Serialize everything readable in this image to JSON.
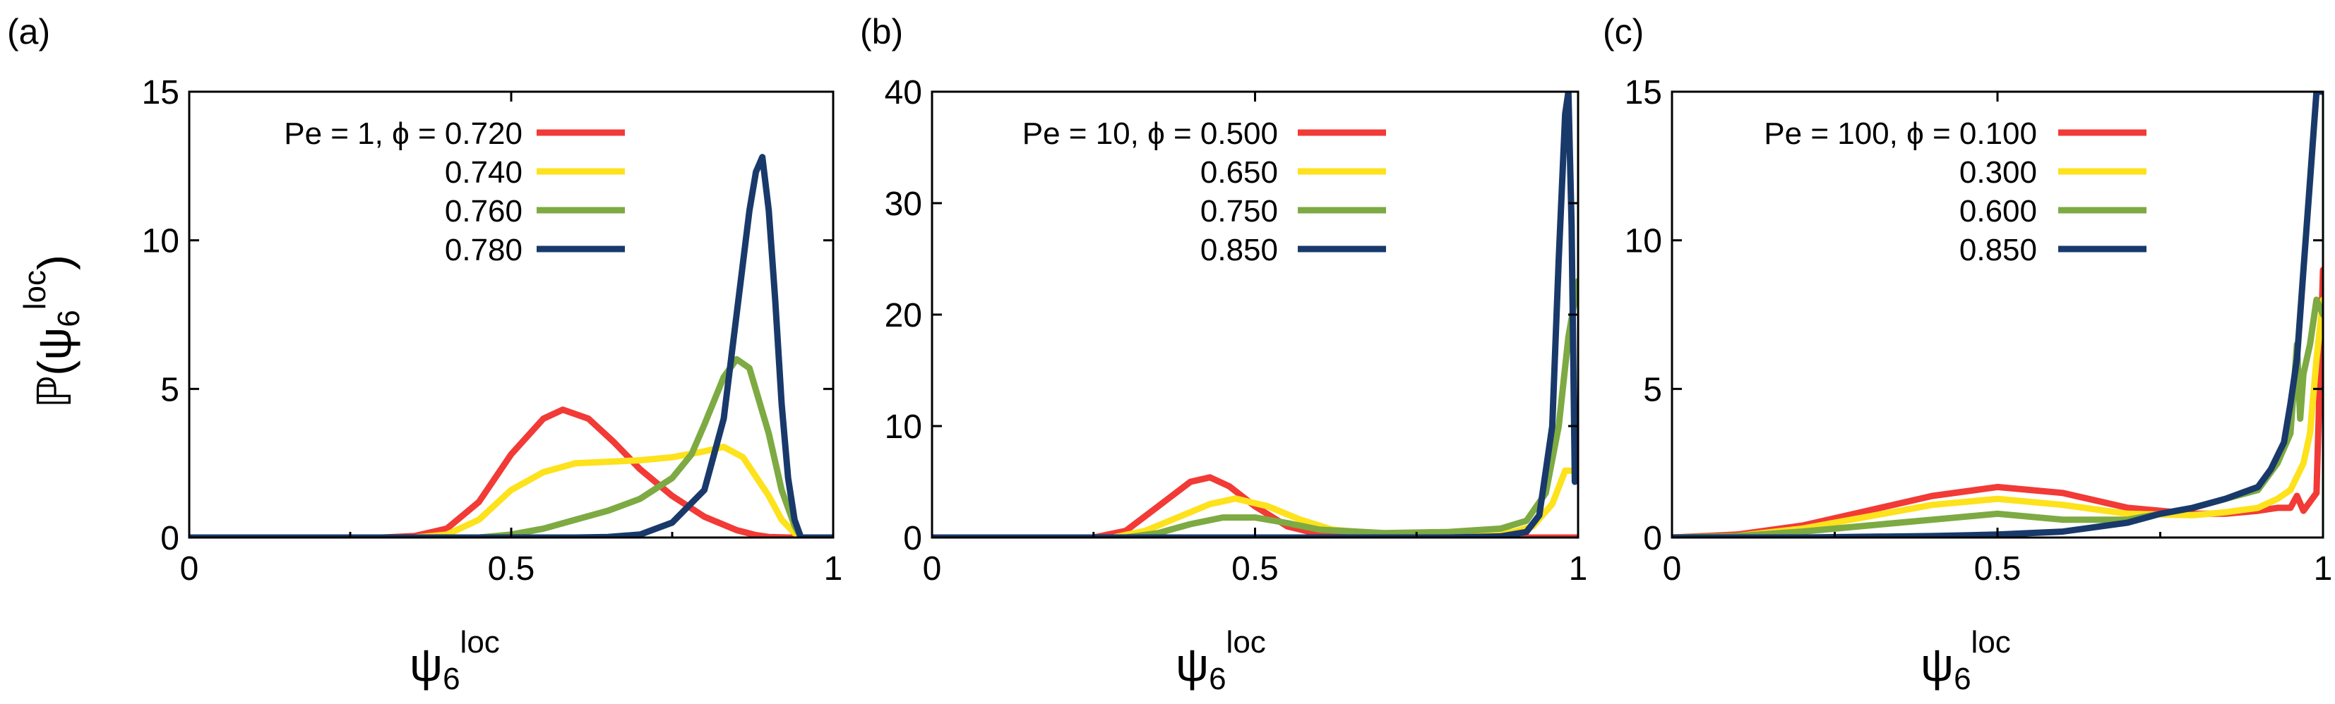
{
  "ylabel_main": "ℙ(ψ",
  "ylabel_sub": "6",
  "ylabel_sup": "loc",
  "ylabel_close": ")",
  "xlabel_main": "ψ",
  "xlabel_sub": "6",
  "xlabel_sup": "loc",
  "colors": {
    "red": "#f23a36",
    "yellow": "#fde21c",
    "green": "#7daa42",
    "navy": "#19396b"
  },
  "chart_data": [
    {
      "type": "line",
      "panel_label": "(a)",
      "legend_prefix": "Pe = 1, ϕ = ",
      "xlim": [
        0,
        1
      ],
      "ylim": [
        0,
        15
      ],
      "xticks": [
        0,
        0.5,
        1
      ],
      "xtick_labels": [
        "0",
        "0.5",
        "1"
      ],
      "yticks": [
        0,
        5,
        10,
        15
      ],
      "ytick_labels": [
        "0",
        "5",
        "10",
        "15"
      ],
      "series": [
        {
          "name": "0.720",
          "color": "#f23a36",
          "x": [
            0,
            0.3,
            0.35,
            0.4,
            0.45,
            0.5,
            0.55,
            0.58,
            0.62,
            0.66,
            0.7,
            0.75,
            0.8,
            0.85,
            0.88,
            0.9,
            0.93,
            1.0
          ],
          "y": [
            0,
            0,
            0.05,
            0.3,
            1.2,
            2.8,
            4.0,
            4.3,
            4.0,
            3.2,
            2.3,
            1.4,
            0.7,
            0.25,
            0.08,
            0.02,
            0,
            0
          ]
        },
        {
          "name": "0.740",
          "color": "#fde21c",
          "x": [
            0,
            0.35,
            0.4,
            0.45,
            0.5,
            0.55,
            0.6,
            0.65,
            0.7,
            0.75,
            0.8,
            0.83,
            0.86,
            0.9,
            0.92,
            0.94,
            0.95,
            1.0
          ],
          "y": [
            0,
            0,
            0.1,
            0.6,
            1.6,
            2.2,
            2.5,
            2.55,
            2.6,
            2.7,
            2.9,
            3.05,
            2.7,
            1.4,
            0.6,
            0.15,
            0,
            0
          ]
        },
        {
          "name": "0.760",
          "color": "#7daa42",
          "x": [
            0,
            0.45,
            0.5,
            0.55,
            0.6,
            0.65,
            0.7,
            0.75,
            0.78,
            0.8,
            0.83,
            0.85,
            0.87,
            0.9,
            0.92,
            0.94,
            0.95,
            1.0
          ],
          "y": [
            0,
            0,
            0.1,
            0.3,
            0.6,
            0.9,
            1.3,
            2.0,
            2.8,
            3.8,
            5.4,
            6.0,
            5.7,
            3.5,
            1.6,
            0.4,
            0,
            0
          ]
        },
        {
          "name": "0.780",
          "color": "#19396b",
          "x": [
            0,
            0.6,
            0.65,
            0.7,
            0.75,
            0.8,
            0.83,
            0.85,
            0.87,
            0.88,
            0.89,
            0.9,
            0.91,
            0.92,
            0.93,
            0.94,
            0.95,
            1.0
          ],
          "y": [
            0,
            0,
            0.02,
            0.1,
            0.5,
            1.6,
            4.0,
            7.5,
            11.0,
            12.3,
            12.8,
            11.0,
            8.0,
            4.5,
            2.0,
            0.6,
            0,
            0
          ]
        }
      ]
    },
    {
      "type": "line",
      "panel_label": "(b)",
      "legend_prefix": "Pe = 10, ϕ = ",
      "xlim": [
        0,
        1
      ],
      "ylim": [
        0,
        40
      ],
      "xticks": [
        0,
        0.5,
        1
      ],
      "xtick_labels": [
        "0",
        "0.5",
        "1"
      ],
      "yticks": [
        0,
        10,
        20,
        30,
        40
      ],
      "ytick_labels": [
        "0",
        "10",
        "20",
        "30",
        "40"
      ],
      "series": [
        {
          "name": "0.500",
          "color": "#f23a36",
          "x": [
            0,
            0.25,
            0.3,
            0.35,
            0.4,
            0.43,
            0.46,
            0.5,
            0.55,
            0.6,
            0.7,
            0.8,
            0.9,
            0.97,
            1.0
          ],
          "y": [
            0,
            0,
            0.6,
            2.8,
            5.0,
            5.4,
            4.6,
            2.8,
            1.0,
            0.3,
            0.05,
            0,
            0,
            0,
            0
          ]
        },
        {
          "name": "0.650",
          "color": "#fde21c",
          "x": [
            0,
            0.28,
            0.33,
            0.38,
            0.43,
            0.47,
            0.52,
            0.57,
            0.62,
            0.7,
            0.8,
            0.9,
            0.93,
            0.96,
            0.98,
            1.0
          ],
          "y": [
            0,
            0,
            0.6,
            1.8,
            3.0,
            3.5,
            2.8,
            1.6,
            0.7,
            0.3,
            0.3,
            0.5,
            1.0,
            3.0,
            6.0,
            6.0
          ]
        },
        {
          "name": "0.750",
          "color": "#7daa42",
          "x": [
            0,
            0.3,
            0.35,
            0.4,
            0.45,
            0.5,
            0.55,
            0.6,
            0.7,
            0.8,
            0.88,
            0.92,
            0.95,
            0.97,
            0.985,
            1.0
          ],
          "y": [
            0,
            0,
            0.4,
            1.2,
            1.8,
            1.8,
            1.3,
            0.7,
            0.4,
            0.5,
            0.8,
            1.5,
            4.0,
            10.0,
            18.0,
            23.0
          ]
        },
        {
          "name": "0.850",
          "color": "#19396b",
          "x": [
            0,
            0.8,
            0.88,
            0.92,
            0.94,
            0.96,
            0.97,
            0.98,
            0.985,
            0.99,
            0.995
          ],
          "y": [
            0,
            0,
            0.1,
            0.5,
            2.0,
            10.0,
            25.0,
            38.0,
            40.0,
            28.0,
            5.0
          ]
        }
      ]
    },
    {
      "type": "line",
      "panel_label": "(c)",
      "legend_prefix": "Pe = 100, ϕ = ",
      "xlim": [
        0,
        1
      ],
      "ylim": [
        0,
        15
      ],
      "xticks": [
        0,
        0.5,
        1
      ],
      "xtick_labels": [
        "0",
        "0.5",
        "1"
      ],
      "yticks": [
        0,
        5,
        10,
        15
      ],
      "ytick_labels": [
        "0",
        "5",
        "10",
        "15"
      ],
      "series": [
        {
          "name": "0.100",
          "color": "#f23a36",
          "x": [
            0,
            0.1,
            0.2,
            0.3,
            0.4,
            0.5,
            0.6,
            0.7,
            0.8,
            0.85,
            0.9,
            0.93,
            0.95,
            0.96,
            0.97,
            0.98,
            0.99,
            1.0
          ],
          "y": [
            0,
            0.1,
            0.4,
            0.9,
            1.4,
            1.7,
            1.5,
            1.0,
            0.8,
            0.8,
            0.9,
            1.0,
            1.0,
            1.4,
            0.9,
            1.2,
            1.5,
            9.0
          ]
        },
        {
          "name": "0.300",
          "color": "#fde21c",
          "x": [
            0,
            0.1,
            0.2,
            0.3,
            0.4,
            0.5,
            0.6,
            0.7,
            0.8,
            0.85,
            0.9,
            0.93,
            0.95,
            0.97,
            0.98,
            0.99,
            1.0
          ],
          "y": [
            0,
            0.05,
            0.3,
            0.7,
            1.1,
            1.3,
            1.1,
            0.8,
            0.75,
            0.85,
            1.0,
            1.3,
            1.6,
            2.5,
            3.5,
            6.0,
            8.0
          ]
        },
        {
          "name": "0.600",
          "color": "#7daa42",
          "x": [
            0,
            0.1,
            0.2,
            0.3,
            0.4,
            0.5,
            0.6,
            0.7,
            0.8,
            0.85,
            0.9,
            0.93,
            0.95,
            0.96,
            0.965,
            0.97,
            0.98,
            0.99,
            1.0
          ],
          "y": [
            0,
            0.05,
            0.2,
            0.4,
            0.6,
            0.8,
            0.6,
            0.6,
            1.0,
            1.3,
            1.6,
            2.5,
            3.5,
            6.5,
            4.0,
            5.5,
            6.5,
            8.0,
            7.5
          ]
        },
        {
          "name": "0.850",
          "color": "#19396b",
          "x": [
            0,
            0.2,
            0.4,
            0.5,
            0.6,
            0.7,
            0.75,
            0.8,
            0.85,
            0.9,
            0.92,
            0.94,
            0.95,
            0.96,
            0.97,
            0.98,
            0.99,
            1.0
          ],
          "y": [
            0,
            0,
            0.05,
            0.1,
            0.2,
            0.5,
            0.8,
            1.0,
            1.3,
            1.7,
            2.3,
            3.2,
            4.5,
            6.0,
            9.0,
            12.0,
            15.0,
            15.0
          ]
        }
      ]
    }
  ]
}
